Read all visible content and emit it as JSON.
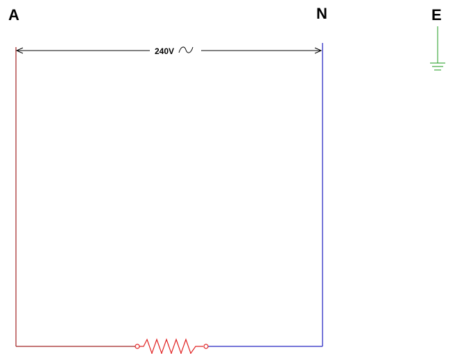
{
  "terminals": {
    "active": "A",
    "neutral": "N",
    "earth": "E"
  },
  "supply": {
    "voltage": "240V",
    "ac_symbol": "~"
  },
  "colors": {
    "active_wire": "#a02020",
    "neutral_wire": "#2020c0",
    "earth_wire": "#1a9a1a",
    "resistor": "#e02020",
    "dimension": "#000000"
  },
  "components": {
    "load": "resistor-icon",
    "earth": "earth-ground-icon"
  }
}
